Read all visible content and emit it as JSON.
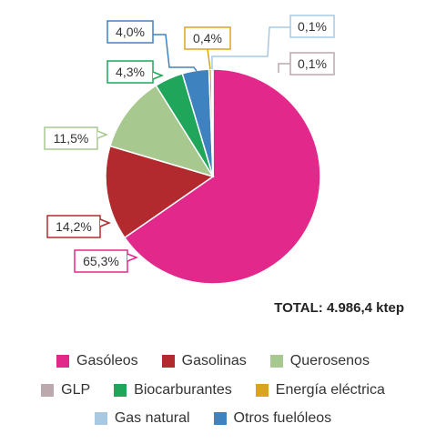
{
  "chart_data": {
    "type": "pie",
    "total_label": "TOTAL: 4.986,4 ktep",
    "slices": [
      {
        "name": "Gasóleos",
        "value": 65.3,
        "label": "65,3%",
        "color": "#e2288a"
      },
      {
        "name": "Gasolinas",
        "value": 14.2,
        "label": "14,2%",
        "color": "#b22a2e"
      },
      {
        "name": "Querosenos",
        "value": 11.5,
        "label": "11,5%",
        "color": "#a7c98f"
      },
      {
        "name": "Biocarburantes",
        "value": 4.3,
        "label": "4,3%",
        "color": "#1fa65a"
      },
      {
        "name": "Otros fuelóleos",
        "value": 4.0,
        "label": "4,0%",
        "color": "#3f82c0"
      },
      {
        "name": "Energía eléctrica",
        "value": 0.4,
        "label": "0,4%",
        "color": "#d9a520"
      },
      {
        "name": "Gas natural",
        "value": 0.1,
        "label": "0,1%",
        "color": "#a9c8e2"
      },
      {
        "name": "GLP",
        "value": 0.1,
        "label": "0,1%",
        "color": "#bca9ae"
      }
    ],
    "legend_order": [
      [
        "Gasóleos",
        "Gasolinas",
        "Querosenos"
      ],
      [
        "GLP",
        "Biocarburantes",
        "Energía eléctrica"
      ],
      [
        "Gas natural",
        "Otros fuelóleos"
      ]
    ]
  }
}
